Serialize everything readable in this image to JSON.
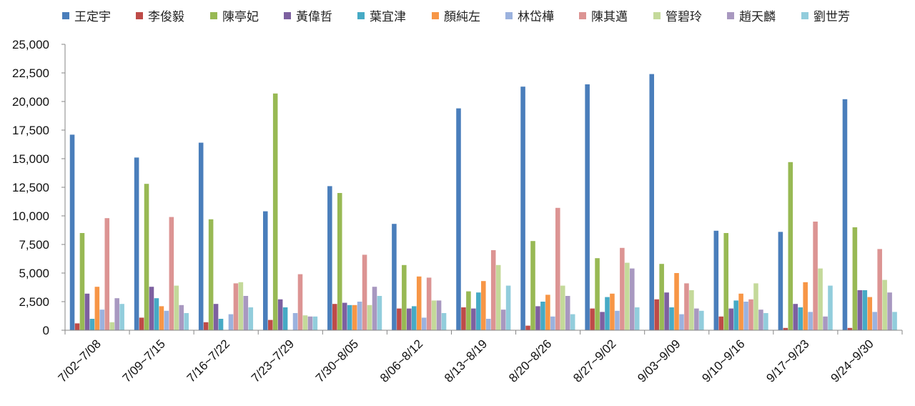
{
  "chart_data": {
    "type": "bar",
    "title": "",
    "xlabel": "",
    "ylabel": "",
    "ylim": [
      0,
      25000
    ],
    "yticks": [
      "0",
      "2,500",
      "5,000",
      "7,500",
      "10,000",
      "12,500",
      "15,000",
      "17,500",
      "20,000",
      "22,500",
      "25,000"
    ],
    "ytick_values": [
      0,
      2500,
      5000,
      7500,
      10000,
      12500,
      15000,
      17500,
      20000,
      22500,
      25000
    ],
    "legend_position": "top",
    "grid": false,
    "categories": [
      "7/02~7/08",
      "7/09~7/15",
      "7/16~7/22",
      "7/23~7/29",
      "7/30~8/05",
      "8/06~8/12",
      "8/13~8/19",
      "8/20~8/26",
      "8/27~9/02",
      "9/03~9/09",
      "9/10~9/16",
      "9/17~9/23",
      "9/24~9/30"
    ],
    "series": [
      {
        "name": "王定宇",
        "color": "#4a7ebb",
        "values": [
          17100,
          15100,
          16400,
          10400,
          12600,
          9300,
          19400,
          21300,
          21500,
          22400,
          8700,
          8600,
          20200
        ]
      },
      {
        "name": "李俊毅",
        "color": "#be4b48",
        "values": [
          600,
          1100,
          700,
          900,
          2300,
          1900,
          2000,
          400,
          1900,
          2700,
          1200,
          200,
          200
        ]
      },
      {
        "name": "陳亭妃",
        "color": "#98b954",
        "values": [
          8500,
          12800,
          9700,
          20700,
          12000,
          5700,
          3400,
          7800,
          6300,
          5800,
          8500,
          14700,
          9000
        ]
      },
      {
        "name": "黃偉哲",
        "color": "#7d60a0",
        "values": [
          3200,
          3800,
          2300,
          2700,
          2400,
          1900,
          1900,
          2100,
          1600,
          3300,
          1900,
          2300,
          3500
        ]
      },
      {
        "name": "葉宜津",
        "color": "#46aac5",
        "values": [
          1000,
          2800,
          1000,
          2000,
          2200,
          2100,
          3300,
          2500,
          2900,
          2000,
          2600,
          2000,
          3500
        ]
      },
      {
        "name": "顏純左",
        "color": "#f79646",
        "values": [
          3800,
          2100,
          0,
          0,
          2200,
          4700,
          4300,
          3100,
          3200,
          5000,
          3200,
          4200,
          2900
        ]
      },
      {
        "name": "林岱樺",
        "color": "#9bb2de",
        "values": [
          1800,
          1700,
          1400,
          1500,
          2500,
          1100,
          1000,
          1200,
          1700,
          1400,
          2500,
          1600,
          1600
        ]
      },
      {
        "name": "陳其邁",
        "color": "#dc9493",
        "values": [
          9800,
          9900,
          4100,
          4900,
          6600,
          4600,
          7000,
          10700,
          7200,
          4100,
          2700,
          9500,
          7100
        ]
      },
      {
        "name": "管碧玲",
        "color": "#c4d99a",
        "values": [
          700,
          3900,
          4200,
          1300,
          2200,
          2600,
          5700,
          3900,
          5900,
          3500,
          4100,
          5400,
          4400
        ]
      },
      {
        "name": "趙天麟",
        "color": "#a898c0",
        "values": [
          2800,
          2200,
          3000,
          1200,
          3800,
          2600,
          1800,
          3000,
          5400,
          1900,
          1800,
          1200,
          3300
        ]
      },
      {
        "name": "劉世芳",
        "color": "#92cddc",
        "values": [
          2300,
          1500,
          2000,
          1200,
          3000,
          1500,
          3900,
          1400,
          2000,
          1700,
          1500,
          3900,
          1600
        ]
      }
    ]
  }
}
